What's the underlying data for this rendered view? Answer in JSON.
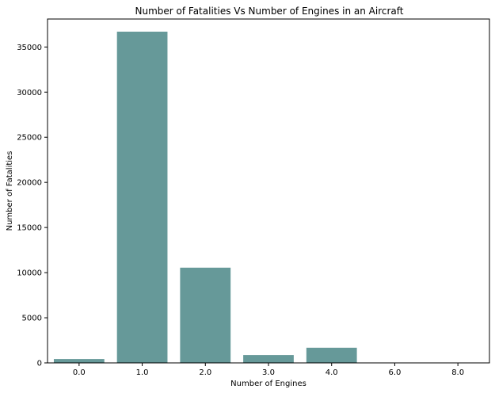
{
  "chart_data": {
    "type": "bar",
    "title": "Number of Fatalities Vs Number of Engines in an Aircraft",
    "xlabel": "Number of Engines",
    "ylabel": "Number of Fatalities",
    "categories": [
      "0.0",
      "1.0",
      "2.0",
      "3.0",
      "4.0",
      "6.0",
      "8.0"
    ],
    "values": [
      430,
      36700,
      10550,
      870,
      1680,
      0,
      0
    ],
    "ylim": [
      0,
      38100
    ],
    "yticks": [
      0,
      5000,
      10000,
      15000,
      20000,
      25000,
      30000,
      35000
    ],
    "bar_color": "#669999",
    "grid": false,
    "legend": "none"
  }
}
